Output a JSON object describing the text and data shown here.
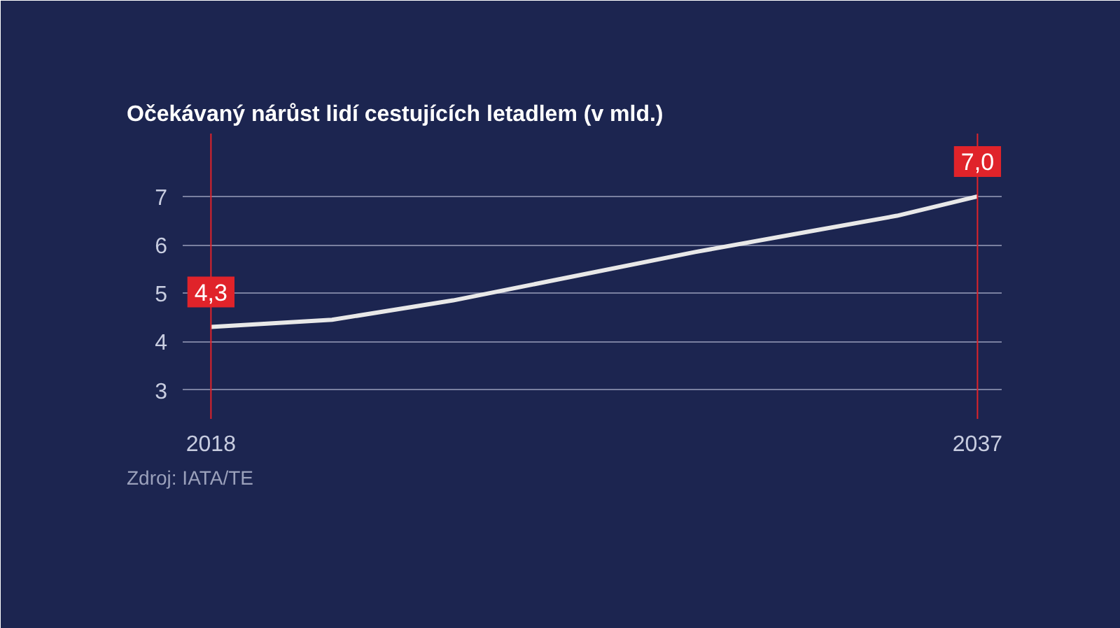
{
  "chart_data": {
    "type": "line",
    "title": "Očekávaný nárůst lidí cestujících letadlem     (v mld.)",
    "x": [
      2018,
      2021,
      2024,
      2027,
      2030,
      2033,
      2035,
      2037
    ],
    "series": [
      {
        "color": "#e8e8e8",
        "values": [
          4.3,
          4.45,
          4.85,
          5.35,
          5.85,
          6.3,
          6.6,
          7.0
        ],
        "value_labels": [
          "4,3",
          null,
          null,
          null,
          null,
          null,
          null,
          "7,0"
        ]
      }
    ],
    "xlim": [
      2017.3,
      2037.6
    ],
    "ylim": [
      2.4,
      8.3
    ],
    "xticks": [
      2018,
      2037
    ],
    "yticks": [
      3,
      4,
      5,
      6,
      7
    ],
    "grid": "y",
    "ref_lines": [
      {
        "axis": "x",
        "value": 2018,
        "color": "#e0232a"
      },
      {
        "axis": "x",
        "value": 2037,
        "color": "#e0232a"
      }
    ],
    "annotations": [
      "Zdroj: IATA/TE"
    ]
  }
}
